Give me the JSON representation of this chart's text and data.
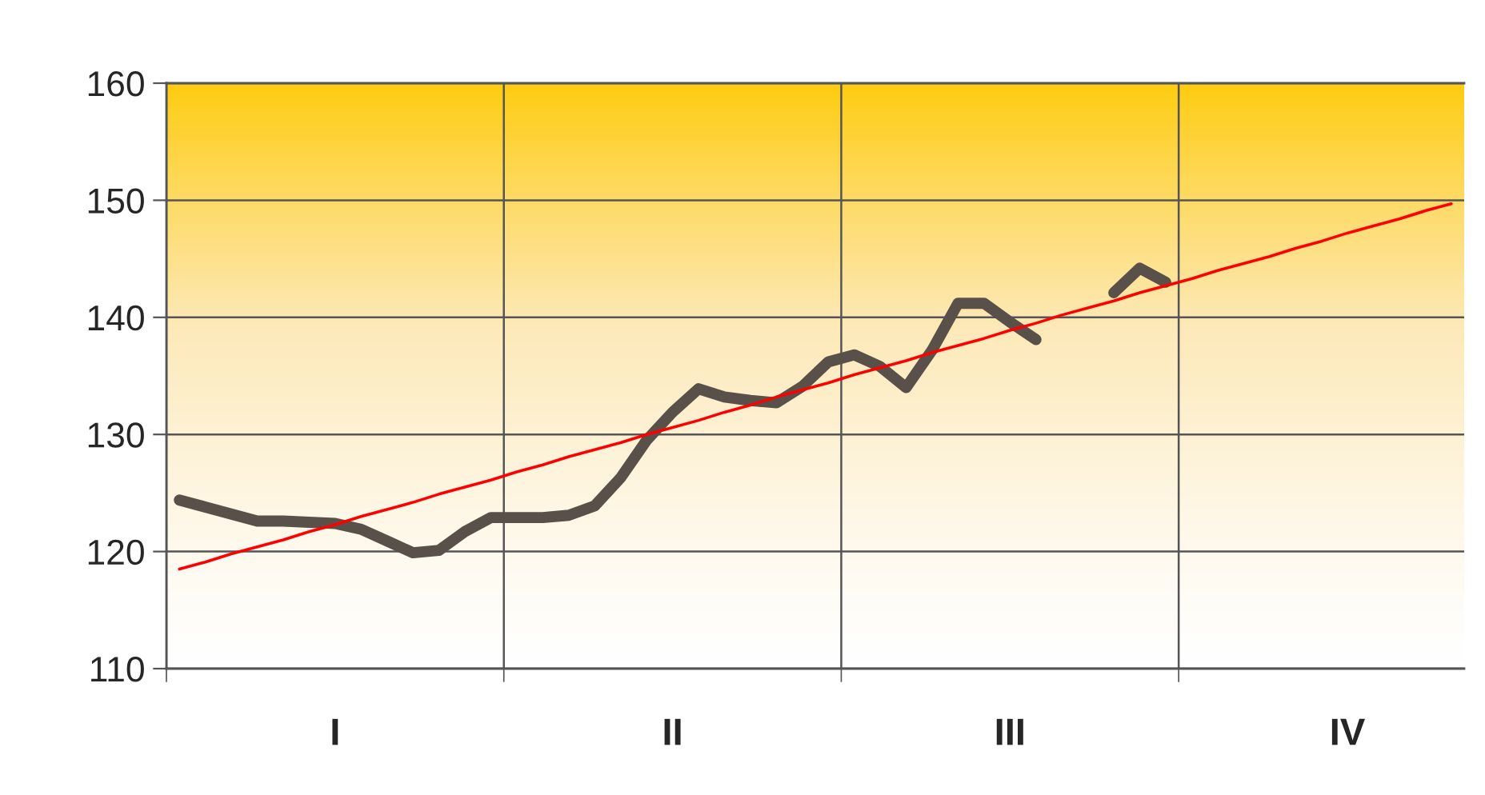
{
  "chart_data": {
    "type": "line",
    "categories": [
      null,
      null,
      null,
      null,
      null,
      null,
      "I",
      null,
      null,
      null,
      null,
      null,
      null,
      null,
      null,
      null,
      null,
      null,
      null,
      "II",
      null,
      null,
      null,
      null,
      null,
      null,
      null,
      null,
      null,
      null,
      null,
      null,
      "III",
      null,
      null,
      null,
      null,
      null,
      null,
      null,
      null,
      null,
      null,
      null,
      null,
      "IV",
      null,
      null,
      null,
      null
    ],
    "series": [
      {
        "color": "#595049",
        "values": [
          124.4,
          123.8,
          123.2,
          122.6,
          122.6,
          122.5,
          122.4,
          121.9,
          120.9,
          119.9,
          120.1,
          121.7,
          122.9,
          122.9,
          122.9,
          123.1,
          123.9,
          126.3,
          129.5,
          131.9,
          133.9,
          133.2,
          132.9,
          132.7,
          134.1,
          136.2,
          136.8,
          135.8,
          134.0,
          137.2,
          141.2,
          141.2,
          139.6,
          138.1,
          null,
          null,
          142.1,
          144.2,
          143.0,
          null,
          null,
          null,
          null,
          null,
          null,
          null,
          null,
          null,
          null,
          null
        ]
      },
      {
        "type": "line",
        "color": "#ff0000",
        "values": [
          118.5,
          119.1,
          119.8,
          120.4,
          121.0,
          121.7,
          122.3,
          123.0,
          123.6,
          124.2,
          124.9,
          125.5,
          126.1,
          126.8,
          127.4,
          128.1,
          128.7,
          129.3,
          130.0,
          130.6,
          131.2,
          131.9,
          132.5,
          133.2,
          133.8,
          134.4,
          135.1,
          135.7,
          136.3,
          137.0,
          137.6,
          138.2,
          138.9,
          139.5,
          140.2,
          140.8,
          141.4,
          142.1,
          142.7,
          143.3,
          144.0,
          144.6,
          145.2,
          145.9,
          146.5,
          147.2,
          147.8,
          148.4,
          149.1,
          149.7
        ]
      }
    ],
    "ylim": [
      110,
      160
    ],
    "yticks": [
      110,
      120,
      130,
      140,
      150,
      160
    ],
    "grid": true
  }
}
